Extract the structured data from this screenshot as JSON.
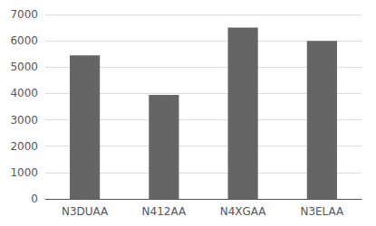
{
  "chart_data": {
    "type": "bar",
    "categories": [
      "N3DUAA",
      "N412AA",
      "N4XGAA",
      "N3ELAA"
    ],
    "values": [
      5450,
      3950,
      6500,
      6000
    ],
    "color": "#656565",
    "ylim": [
      0,
      7000
    ],
    "yticks": [
      0,
      1000,
      2000,
      3000,
      4000,
      5000,
      6000,
      7000
    ],
    "grid": true
  }
}
